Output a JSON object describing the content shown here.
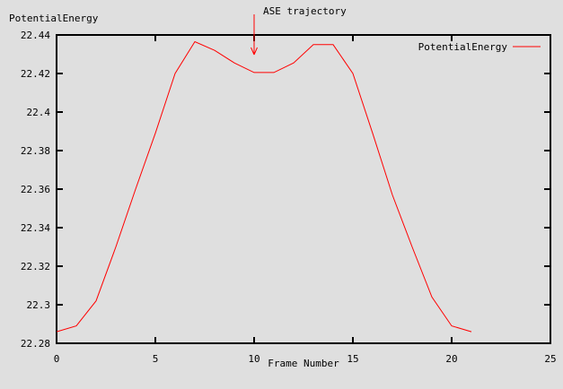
{
  "title": "PotentialEnergy",
  "annotation": {
    "label": "ASE trajectory"
  },
  "legend": {
    "label": "PotentialEnergy"
  },
  "colors": {
    "line": "#ff0000",
    "axis": "#000000",
    "background": "#dfdfdf",
    "text": "#000000"
  },
  "chart_data": {
    "type": "line",
    "title": "PotentialEnergy",
    "xlabel": "Frame Number",
    "ylabel": "PotentialEnergy",
    "x": [
      0,
      1,
      2,
      3,
      4,
      5,
      6,
      7,
      8,
      9,
      10,
      11,
      12,
      13,
      14,
      15,
      16,
      17,
      18,
      19,
      20,
      21
    ],
    "series": [
      {
        "name": "PotentialEnergy",
        "color": "#ff0000",
        "values": [
          22.286,
          22.289,
          22.302,
          22.33,
          22.36,
          22.389,
          22.42,
          22.4365,
          22.432,
          22.4255,
          22.4205,
          22.4205,
          22.4255,
          22.435,
          22.435,
          22.42,
          22.389,
          22.357,
          22.33,
          22.304,
          22.289,
          22.286
        ]
      }
    ],
    "xlim": [
      0,
      25
    ],
    "ylim": [
      22.28,
      22.44
    ],
    "xticks": [
      0,
      5,
      10,
      15,
      20,
      25
    ],
    "xtick_labels": [
      "0",
      "5",
      "10",
      "15",
      "20",
      "25"
    ],
    "yticks": [
      22.28,
      22.3,
      22.32,
      22.34,
      22.36,
      22.38,
      22.4,
      22.42,
      22.44
    ],
    "ytick_labels": [
      "22.28",
      "22.3",
      "22.32",
      "22.34",
      "22.36",
      "22.38",
      "22.4",
      "22.42",
      "22.44"
    ],
    "grid": false,
    "legend_position": "top-right",
    "annotation": {
      "text": "ASE trajectory",
      "x": 10
    }
  }
}
